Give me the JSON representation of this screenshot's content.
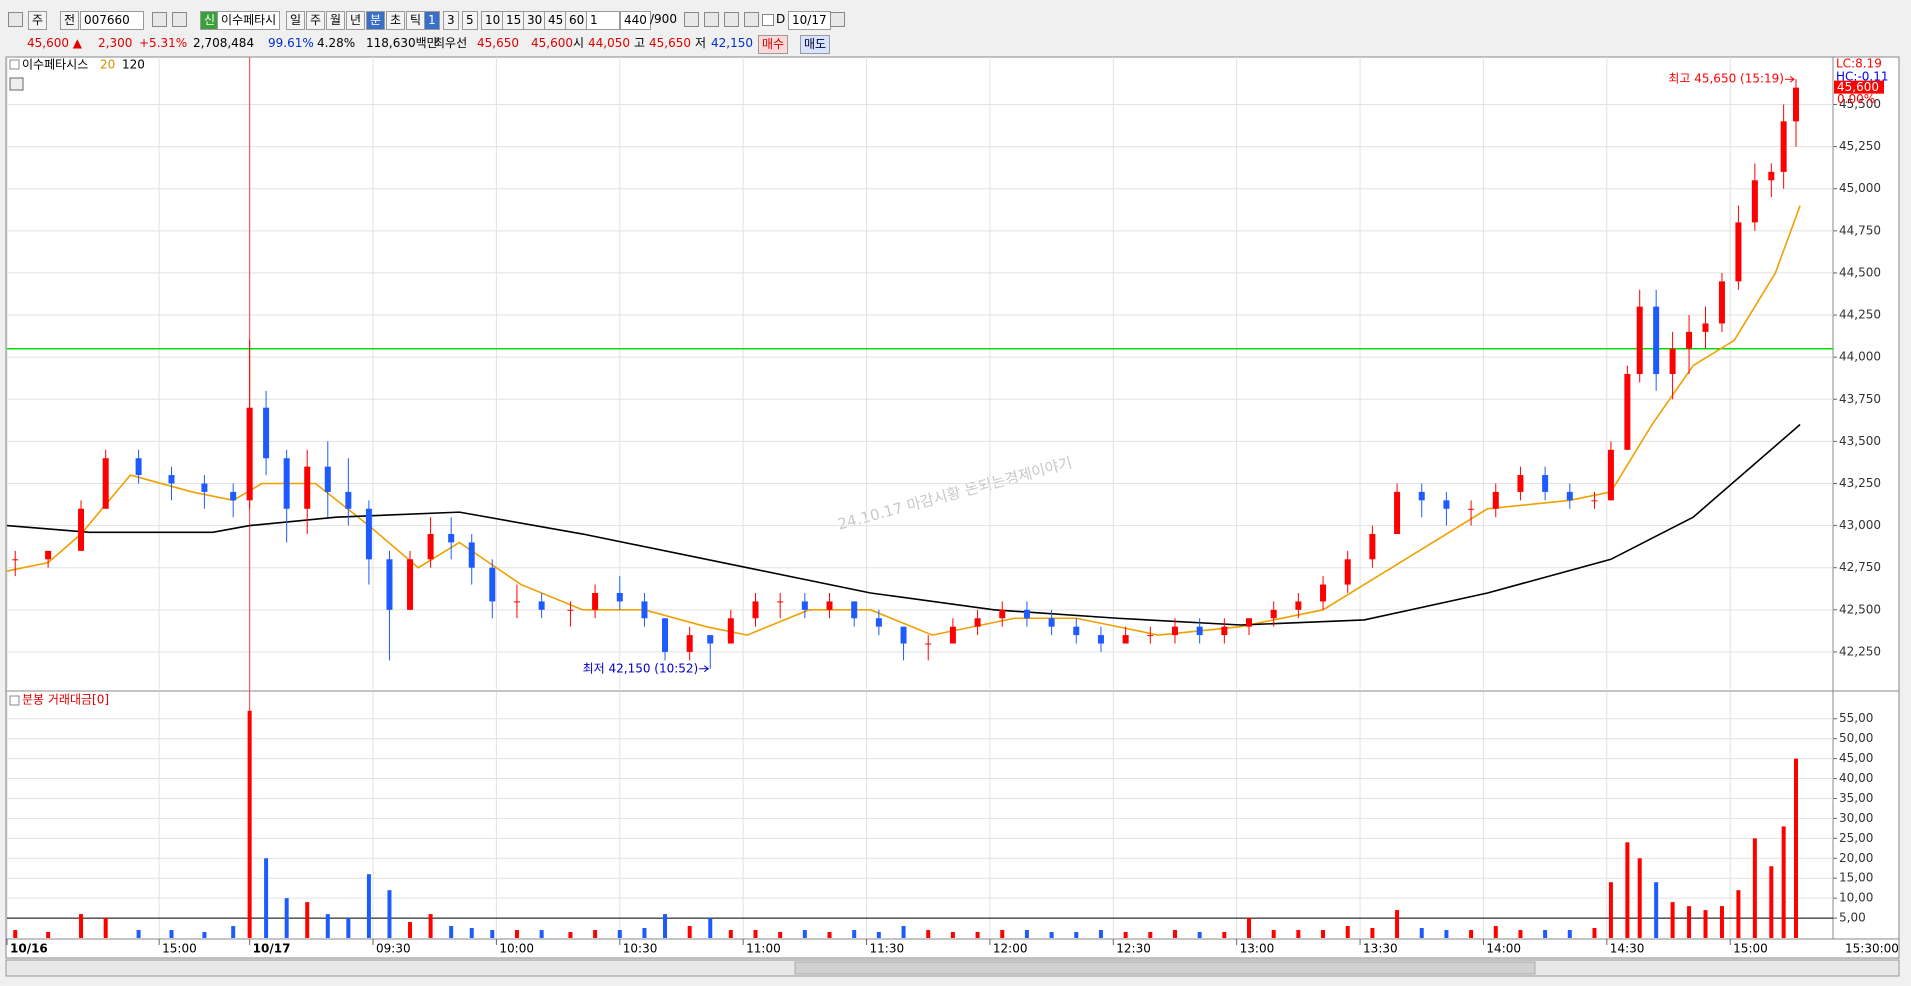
{
  "toolbar": [
    "주",
    "전",
    "007660",
    "신",
    "이수페타시",
    "일",
    "주",
    "월",
    "년",
    "분",
    "초",
    "틱",
    "1",
    "3",
    "5",
    "10",
    "15",
    "30",
    "45",
    "60",
    "1",
    "440",
    "/900",
    "D",
    "10/17"
  ],
  "quote": [
    "45,600 ▲",
    "2,300",
    "+5.31%",
    "2,708,484",
    "99.61%",
    "4.28%",
    "118,630백만",
    "최우선",
    "45,650",
    "45,600",
    "시",
    "44,050",
    "고",
    "45,650",
    "저",
    "42,150",
    "매수",
    "매도"
  ],
  "chart_data": {
    "type": "candlestick",
    "legend_title": "이수페타시스",
    "up_color": "#ff0000",
    "down_color": "#1e5bff",
    "candles": {
      "x": [
        2,
        10,
        18,
        24,
        32,
        40,
        48,
        55,
        59,
        63,
        68,
        73,
        78,
        83,
        88,
        93,
        98,
        103,
        108,
        113,
        118,
        124,
        130,
        137,
        143,
        149,
        155,
        160,
        166,
        171,
        176,
        182,
        188,
        194,
        200,
        206,
        212,
        218,
        224,
        230,
        236,
        242,
        248,
        254,
        260,
        266,
        272,
        278,
        284,
        290,
        296,
        302,
        308,
        314,
        320,
        326,
        332,
        338,
        344,
        350,
        356,
        362,
        368,
        374,
        380,
        386,
        390,
        394,
        397,
        401,
        405,
        409,
        413,
        417,
        421,
        425,
        429,
        432,
        435
      ],
      "open": [
        42800,
        42800,
        42850,
        43100,
        43400,
        43300,
        43250,
        43200,
        43150,
        43700,
        43400,
        43100,
        43350,
        43200,
        43100,
        42800,
        42500,
        42800,
        42950,
        42900,
        42750,
        42550,
        42550,
        42500,
        42500,
        42600,
        42550,
        42450,
        42250,
        42350,
        42300,
        42450,
        42550,
        42550,
        42500,
        42550,
        42450,
        42400,
        42300,
        42300,
        42400,
        42450,
        42500,
        42450,
        42400,
        42350,
        42300,
        42350,
        42350,
        42400,
        42350,
        42400,
        42450,
        42500,
        42550,
        42650,
        42800,
        42950,
        43200,
        43150,
        43100,
        43100,
        43200,
        43300,
        43200,
        43150,
        43150,
        43450,
        43900,
        44300,
        43900,
        44050,
        44150,
        44200,
        44450,
        44800,
        45050,
        45100,
        45400
      ],
      "high": [
        42850,
        42850,
        43150,
        43450,
        43450,
        43350,
        43300,
        43250,
        44100,
        43800,
        43450,
        43450,
        43500,
        43400,
        43150,
        42850,
        42850,
        43050,
        43050,
        42950,
        42800,
        42650,
        42600,
        42550,
        42650,
        42700,
        42600,
        42450,
        42400,
        42350,
        42500,
        42600,
        42600,
        42600,
        42600,
        42550,
        42500,
        42400,
        42350,
        42450,
        42500,
        42550,
        42550,
        42500,
        42450,
        42400,
        42400,
        42400,
        42450,
        42450,
        42450,
        42450,
        42550,
        42600,
        42700,
        42850,
        43000,
        43250,
        43250,
        43200,
        43150,
        43250,
        43350,
        43350,
        43250,
        43200,
        43500,
        43950,
        44400,
        44400,
        44150,
        44250,
        44300,
        44500,
        44900,
        45150,
        45150,
        45500,
        45650
      ],
      "low": [
        42700,
        42750,
        42850,
        43100,
        43250,
        43150,
        43100,
        43050,
        43100,
        43300,
        42900,
        42950,
        43050,
        43000,
        42650,
        42200,
        42500,
        42750,
        42800,
        42650,
        42450,
        42450,
        42450,
        42400,
        42450,
        42500,
        42400,
        42200,
        42200,
        42150,
        42300,
        42400,
        42450,
        42450,
        42450,
        42400,
        42350,
        42200,
        42200,
        42300,
        42350,
        42400,
        42400,
        42350,
        42300,
        42250,
        42300,
        42300,
        42300,
        42300,
        42300,
        42350,
        42400,
        42450,
        42500,
        42600,
        42750,
        42950,
        43050,
        43000,
        43000,
        43050,
        43150,
        43150,
        43100,
        43100,
        43150,
        43450,
        43850,
        43800,
        43750,
        43900,
        44050,
        44150,
        44400,
        44750,
        44950,
        45000,
        45250
      ],
      "close": [
        42800,
        42850,
        43100,
        43400,
        43300,
        43250,
        43200,
        43150,
        43700,
        43400,
        43100,
        43350,
        43200,
        43100,
        42800,
        42500,
        42800,
        42950,
        42900,
        42750,
        42550,
        42550,
        42500,
        42500,
        42600,
        42550,
        42450,
        42250,
        42350,
        42300,
        42450,
        42550,
        42550,
        42500,
        42550,
        42450,
        42400,
        42300,
        42300,
        42400,
        42450,
        42500,
        42450,
        42400,
        42350,
        42300,
        42350,
        42350,
        42400,
        42350,
        42400,
        42450,
        42500,
        42550,
        42650,
        42800,
        42950,
        43200,
        43150,
        43100,
        43100,
        43200,
        43300,
        43200,
        43150,
        43150,
        43450,
        43900,
        44300,
        43900,
        44050,
        44150,
        44200,
        44450,
        44800,
        45050,
        45100,
        45400,
        45600
      ]
    },
    "lines": [
      {
        "name": "20",
        "color": "#f0a000",
        "x": [
          0,
          10,
          18,
          30,
          45,
          55,
          62,
          75,
          88,
          100,
          110,
          125,
          140,
          155,
          170,
          180,
          195,
          210,
          225,
          245,
          260,
          280,
          300,
          320,
          340,
          360,
          380,
          390,
          400,
          410,
          420,
          430,
          436
        ],
        "values": [
          42730,
          42780,
          42950,
          43300,
          43200,
          43150,
          43250,
          43250,
          43000,
          42750,
          42900,
          42650,
          42500,
          42500,
          42400,
          42350,
          42500,
          42500,
          42350,
          42450,
          42450,
          42350,
          42400,
          42500,
          42800,
          43100,
          43150,
          43200,
          43600,
          43950,
          44100,
          44500,
          44900
        ]
      },
      {
        "name": "120",
        "color": "#000000",
        "x": [
          0,
          20,
          50,
          59,
          80,
          110,
          140,
          180,
          210,
          240,
          270,
          300,
          330,
          360,
          390,
          410,
          436
        ],
        "values": [
          43000,
          42960,
          42960,
          43000,
          43050,
          43080,
          42950,
          42750,
          42600,
          42500,
          42450,
          42410,
          42440,
          42600,
          42800,
          43050,
          43600
        ]
      }
    ],
    "xlim": [
      0,
      444
    ],
    "xticks": [
      {
        "value": 0,
        "label": "10/16"
      },
      {
        "value": 37,
        "label": "15:00"
      },
      {
        "value": 59,
        "label": "10/17"
      },
      {
        "value": 89,
        "label": "09:30"
      },
      {
        "value": 119,
        "label": "10:00"
      },
      {
        "value": 149,
        "label": "10:30"
      },
      {
        "value": 179,
        "label": "11:00"
      },
      {
        "value": 209,
        "label": "11:30"
      },
      {
        "value": 239,
        "label": "12:00"
      },
      {
        "value": 269,
        "label": "12:30"
      },
      {
        "value": 299,
        "label": "13:00"
      },
      {
        "value": 329,
        "label": "13:30"
      },
      {
        "value": 359,
        "label": "14:00"
      },
      {
        "value": 389,
        "label": "14:30"
      },
      {
        "value": 419,
        "label": "15:00"
      }
    ],
    "x_end_label": "15:30:00",
    "ylim": [
      42030,
      45770
    ],
    "yticks": [
      {
        "value": 42250,
        "label": "42,250"
      },
      {
        "value": 42500,
        "label": "42,500"
      },
      {
        "value": 42750,
        "label": "42,750"
      },
      {
        "value": 43000,
        "label": "43,000"
      },
      {
        "value": 43250,
        "label": "43,250"
      },
      {
        "value": 43500,
        "label": "43,500"
      },
      {
        "value": 43750,
        "label": "43,750"
      },
      {
        "value": 44000,
        "label": "44,000"
      },
      {
        "value": 44250,
        "label": "44,250"
      },
      {
        "value": 44500,
        "label": "44,500"
      },
      {
        "value": 44750,
        "label": "44,750"
      },
      {
        "value": 45000,
        "label": "45,000"
      },
      {
        "value": 45250,
        "label": "45,250"
      },
      {
        "value": 45500,
        "label": "45,500"
      }
    ],
    "grid": true,
    "hline": {
      "value": 44050,
      "color": "#00dd00"
    },
    "vline_x": 59,
    "annotations": [
      {
        "text": "최고 45,650 (15:19)",
        "x": 435,
        "y": 45650,
        "color": "#ff0000"
      },
      {
        "text": "최저 42,150 (10:52)",
        "x": 171,
        "y": 42150,
        "color": "#0000cc"
      }
    ],
    "watermark": "24.10.17 마감시황 돈되는경제이야기",
    "side_labels": [
      {
        "text": "LC:8.19",
        "color": "#ff0000"
      },
      {
        "text": "HC:-0.11",
        "color": "#0000ff"
      }
    ],
    "last_price_label": {
      "value": 45600,
      "label": "45,600"
    },
    "change_label": "0.00%",
    "volume": {
      "title": "분봉 거래대금[0]",
      "values": [
        2,
        1.5,
        6,
        5,
        2,
        2,
        1.5,
        3,
        57,
        20,
        10,
        9,
        6,
        5,
        16,
        12,
        4,
        6,
        3,
        2.5,
        2,
        2,
        2,
        1.5,
        2,
        2,
        2.5,
        6,
        3,
        5,
        2,
        2,
        1.5,
        2,
        1.5,
        2,
        1.5,
        3,
        2,
        1.5,
        1.5,
        2,
        2,
        1.5,
        1.5,
        2,
        1.5,
        1.5,
        2,
        1.5,
        1.5,
        5,
        2,
        2,
        2,
        3,
        2.5,
        7,
        2.5,
        2,
        2,
        3,
        2,
        2,
        2,
        2.5,
        14,
        24,
        20,
        14,
        9,
        8,
        7,
        8,
        12,
        25,
        18,
        28,
        45
      ],
      "ylim": [
        0,
        58.7
      ],
      "yticks": [
        {
          "value": 5,
          "label": "5,00"
        },
        {
          "value": 10,
          "label": "10,00"
        },
        {
          "value": 15,
          "label": "15,00"
        },
        {
          "value": 20,
          "label": "20,00"
        },
        {
          "value": 25,
          "label": "25,00"
        },
        {
          "value": 30,
          "label": "30,00"
        },
        {
          "value": 35,
          "label": "35,00"
        },
        {
          "value": 40,
          "label": "40,00"
        },
        {
          "value": 45,
          "label": "45,00"
        },
        {
          "value": 50,
          "label": "50,00"
        },
        {
          "value": 55,
          "label": "55,00"
        }
      ],
      "ref_line": 5
    }
  }
}
